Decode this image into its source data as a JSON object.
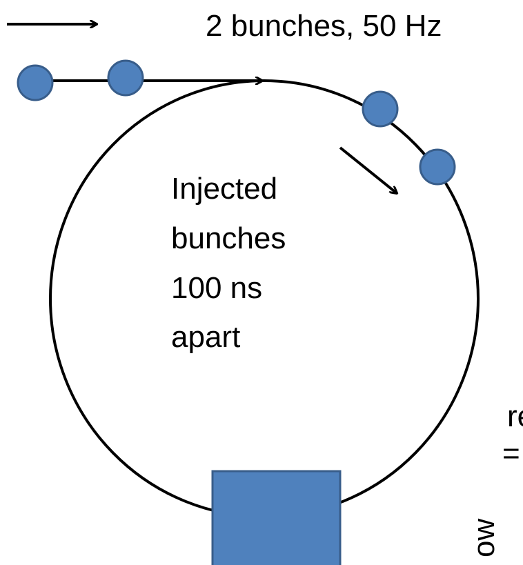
{
  "legend": {
    "label": "2 bunches, 50 Hz"
  },
  "ring": {
    "label": [
      "Injected",
      "bunches",
      "100 ns",
      "apart"
    ]
  },
  "fragments": [
    "re",
    "=",
    "ow"
  ]
}
